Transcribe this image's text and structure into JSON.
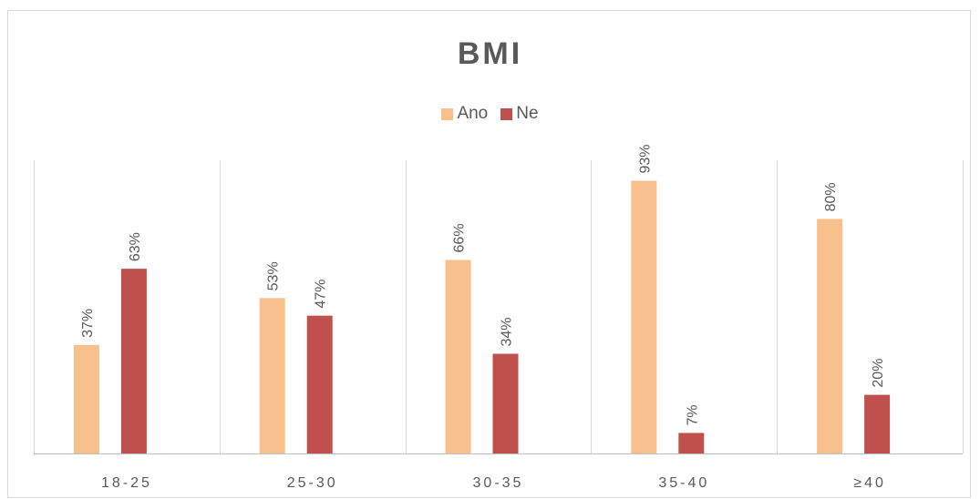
{
  "chart_data": {
    "type": "bar",
    "title": "BMI",
    "categories": [
      "18-25",
      "25-30",
      "30-35",
      "35-40",
      "≥40"
    ],
    "series": [
      {
        "name": "Ano",
        "values": [
          37,
          53,
          66,
          93,
          80
        ],
        "labels": [
          "37%",
          "53%",
          "66%",
          "93%",
          "80%"
        ],
        "color": "#f8c08c"
      },
      {
        "name": "Ne",
        "values": [
          63,
          47,
          34,
          7,
          20
        ],
        "labels": [
          "63%",
          "47%",
          "34%",
          "7%",
          "20%"
        ],
        "color": "#c0504d"
      }
    ],
    "ylim": [
      0,
      100
    ],
    "grid": "vertical category separators",
    "legend": "top-center"
  }
}
